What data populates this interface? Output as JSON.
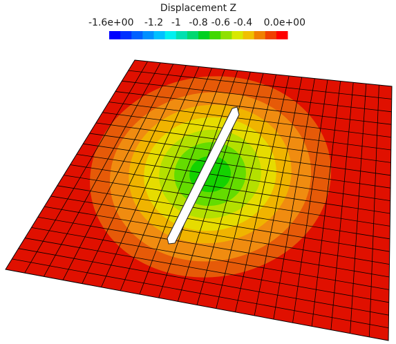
{
  "colorbar": {
    "title": "Displacement Z",
    "tick_labels": [
      "-1.6e+00",
      "-1.2",
      "-1",
      "-0.8",
      "-0.6",
      "-0.4",
      "0.0e+00"
    ],
    "tick_values": [
      -1.6,
      -1.2,
      -1.0,
      -0.8,
      -0.6,
      -0.4,
      0.0
    ],
    "range": [
      -1.6,
      0.0
    ],
    "colors": [
      "#0000ff",
      "#0030ff",
      "#0060ff",
      "#0090ff",
      "#00c0ff",
      "#00f0f0",
      "#00e0b0",
      "#00d870",
      "#00d020",
      "#40d800",
      "#90e000",
      "#d8e800",
      "#f0c000",
      "#f08000",
      "#f04000",
      "#ff0000"
    ]
  },
  "plot": {
    "contour_colors": [
      "#e01000",
      "#e65a08",
      "#f08c10",
      "#f0b400",
      "#e6dc00",
      "#b4e000",
      "#64dc00",
      "#14d200"
    ]
  }
}
